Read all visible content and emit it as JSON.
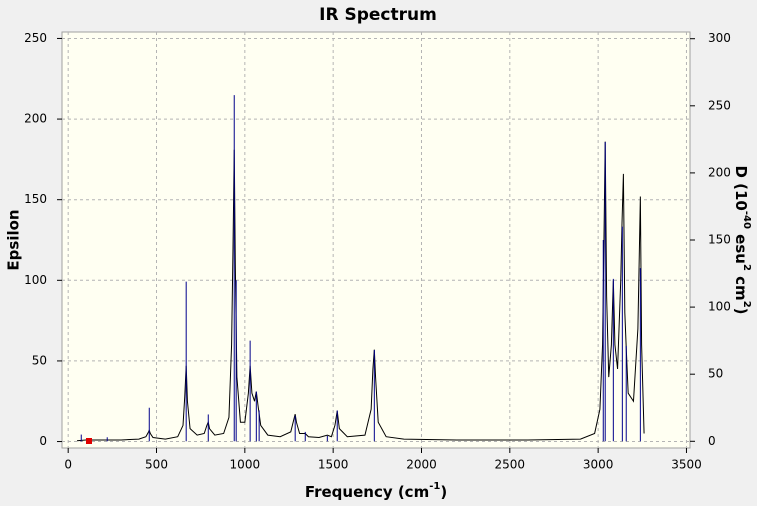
{
  "chart_data": {
    "type": "line",
    "title": "IR Spectrum",
    "x_label": [
      {
        "text": "Frequency (cm"
      },
      {
        "text": "-1",
        "sup": true
      },
      {
        "text": ")"
      }
    ],
    "y_label": "Epsilon",
    "y2_label": [
      {
        "text": "D (10"
      },
      {
        "text": "-40",
        "sup": true
      },
      {
        "text": " esu"
      },
      {
        "text": "2",
        "sup": true
      },
      {
        "text": " cm"
      },
      {
        "text": "2",
        "sup": true
      },
      {
        "text": ")"
      }
    ],
    "xlim": [
      -35,
      3520
    ],
    "xticks": [
      0,
      500,
      1000,
      1500,
      2000,
      2500,
      3000,
      3500
    ],
    "ylim": [
      -4,
      254
    ],
    "yticks": [
      0,
      50,
      100,
      150,
      200,
      250
    ],
    "y2lim": [
      -5,
      305
    ],
    "y2ticks": [
      0,
      50,
      100,
      150,
      200,
      250,
      300
    ],
    "grid": true,
    "series": [
      {
        "color": "#000000",
        "x": [
          50,
          100,
          200,
          300,
          400,
          440,
          455,
          459,
          465,
          480,
          550,
          620,
          650,
          660,
          668,
          675,
          690,
          730,
          770,
          785,
          793,
          800,
          830,
          880,
          910,
          925,
          933,
          940,
          946,
          955,
          975,
          1000,
          1020,
          1030,
          1040,
          1055,
          1065,
          1075,
          1090,
          1130,
          1200,
          1260,
          1278,
          1285,
          1292,
          1310,
          1342,
          1360,
          1420,
          1467,
          1490,
          1510,
          1523,
          1535,
          1580,
          1680,
          1715,
          1725,
          1733,
          1740,
          1755,
          1800,
          1900,
          2200,
          2600,
          2900,
          2980,
          3010,
          3025,
          3033,
          3040,
          3048,
          3060,
          3075,
          3086,
          3095,
          3110,
          3128,
          3135,
          3143,
          3151,
          3159,
          3170,
          3200,
          3225,
          3232,
          3239,
          3246,
          3260
        ],
        "values": [
          0.5,
          1,
          1,
          1,
          1.5,
          3,
          6,
          7,
          5,
          2.5,
          1.5,
          3,
          10,
          28,
          47,
          25,
          8,
          4,
          5,
          10,
          12,
          8,
          4,
          5,
          15,
          60,
          120,
          181,
          110,
          40,
          12,
          12,
          30,
          47,
          30,
          25,
          31,
          22,
          10,
          4,
          3,
          6,
          14,
          17,
          12,
          5,
          5,
          3,
          2.5,
          4,
          3,
          10,
          19,
          8,
          3,
          4,
          20,
          45,
          57,
          40,
          12,
          3,
          1.5,
          1,
          1,
          1.5,
          5,
          20,
          60,
          126,
          186,
          90,
          40,
          60,
          100,
          60,
          45,
          100,
          135,
          166,
          80,
          58,
          30,
          25,
          70,
          110,
          152,
          60,
          5
        ]
      },
      {
        "color": "#00008b",
        "axis": "y2",
        "style": "stick",
        "x": [
          74,
          221,
          459,
          668,
          793,
          940,
          951,
          1030,
          1065,
          1081,
          1285,
          1342,
          1467,
          1523,
          1733,
          3029,
          3040,
          3086,
          3137,
          3159,
          3239
        ],
        "values": [
          5,
          3,
          25,
          119,
          20,
          258,
          120,
          75,
          37,
          23,
          19,
          7,
          4,
          23,
          68,
          150,
          223,
          121,
          160,
          71,
          129
        ]
      }
    ]
  }
}
